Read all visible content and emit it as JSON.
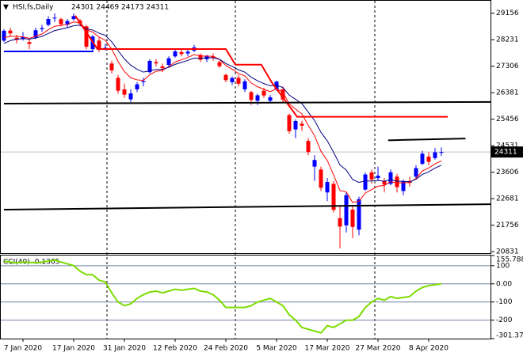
{
  "chart_data": [
    {
      "type": "candlestick",
      "title": "HSI,fs,Daily",
      "subtitle": "24301 24469 24173 24311",
      "categories": [
        null,
        null,
        null,
        "7 Jan 2020",
        null,
        null,
        null,
        null,
        null,
        null,
        null,
        "17 Jan 2020",
        null,
        null,
        null,
        null,
        null,
        null,
        null,
        "31 Jan 2020",
        null,
        null,
        null,
        null,
        null,
        null,
        null,
        "12 Feb 2020",
        null,
        null,
        null,
        null,
        null,
        null,
        null,
        "24 Feb 2020",
        null,
        null,
        null,
        null,
        null,
        null,
        null,
        "5 Mar 2020",
        null,
        null,
        null,
        null,
        null,
        null,
        null,
        "17 Mar 2020",
        null,
        null,
        null,
        null,
        null,
        null,
        null,
        "27 Mar 2020",
        null,
        null,
        null,
        null,
        null,
        null,
        null,
        "8 Apr 2020",
        null,
        null
      ],
      "open": [
        28200,
        28550,
        28300,
        28250,
        28150,
        28300,
        28600,
        28750,
        29000,
        28950,
        28750,
        28950,
        28900,
        28700,
        27900,
        28200,
        27950,
        27400,
        26900,
        26500,
        26150,
        26500,
        26750,
        27100,
        27450,
        27300,
        27350,
        27650,
        27800,
        27750,
        27850,
        27700,
        27550,
        27650,
        27450,
        27000,
        26750,
        26900,
        26500,
        26400,
        26100,
        26450,
        26100,
        26500,
        26500,
        25600,
        25100,
        25300,
        24700,
        23800,
        23700,
        22900,
        23200,
        22000,
        21750,
        22300,
        21600,
        23000,
        23600,
        23400,
        23300,
        23200,
        23450,
        22950,
        23300,
        23450,
        23900,
        24150,
        24100,
        24301
      ],
      "high": [
        28600,
        28650,
        28400,
        28500,
        28250,
        28650,
        28750,
        29050,
        29150,
        29000,
        28950,
        29150,
        28950,
        28750,
        28400,
        28300,
        28100,
        27500,
        27000,
        26700,
        26500,
        26750,
        26900,
        27550,
        27550,
        27400,
        27650,
        27900,
        27900,
        27900,
        28050,
        27750,
        27700,
        27750,
        27500,
        27050,
        26950,
        27000,
        26850,
        26450,
        26350,
        26550,
        26300,
        26800,
        26600,
        25650,
        25450,
        25400,
        24800,
        24200,
        23800,
        23400,
        23300,
        22400,
        22900,
        22450,
        22750,
        23600,
        23700,
        23800,
        23400,
        23700,
        23550,
        23350,
        23450,
        23850,
        24350,
        24300,
        24450,
        24469
      ],
      "low": [
        28150,
        28350,
        28100,
        28200,
        27900,
        28250,
        28500,
        28700,
        28850,
        28700,
        28650,
        28900,
        28700,
        27900,
        27850,
        27800,
        27850,
        27050,
        26350,
        26200,
        26050,
        26400,
        26600,
        27050,
        27300,
        27100,
        27300,
        27600,
        27650,
        27650,
        27800,
        27450,
        27450,
        27500,
        27250,
        26750,
        26650,
        26600,
        26400,
        25950,
        25950,
        26200,
        26000,
        26450,
        26050,
        24950,
        24800,
        25050,
        24200,
        23300,
        22950,
        22600,
        22200,
        20950,
        21500,
        21300,
        21400,
        22950,
        23200,
        23300,
        22900,
        23150,
        22900,
        22800,
        23100,
        23400,
        23850,
        23850,
        24050,
        24173
      ],
      "close": [
        28543,
        28452,
        28226,
        28322,
        28087,
        28561,
        28638,
        28955,
        29000,
        28773,
        28883,
        29056,
        28795,
        27985,
        28341,
        27909,
        27950,
        27160,
        26449,
        26313,
        26356,
        26675,
        26786,
        27493,
        27404,
        27241,
        27583,
        27823,
        27730,
        27816,
        27960,
        27530,
        27656,
        27609,
        27308,
        26820,
        26893,
        26696,
        26778,
        26130,
        26291,
        26284,
        26222,
        26767,
        26146,
        25040,
        25392,
        25231,
        24309,
        24032,
        23064,
        23263,
        22291,
        21709,
        22805,
        21696,
        22663,
        23527,
        23352,
        23484,
        23175,
        23603,
        23085,
        23280,
        23236,
        23749,
        24253,
        23970,
        24300,
        24311
      ],
      "up_color": "#0000ff",
      "down_color": "#ff0000",
      "series": [
        {
          "color": "#ff0000",
          "values": [
            28300,
            28350,
            28350,
            28330,
            28280,
            28350,
            28430,
            28580,
            28700,
            28730,
            28770,
            28850,
            28830,
            28580,
            28500,
            28320,
            28210,
            27900,
            27470,
            27120,
            26900,
            26830,
            26810,
            27010,
            27130,
            27160,
            27290,
            27450,
            27530,
            27610,
            27710,
            27660,
            27660,
            27650,
            27550,
            27330,
            27200,
            27050,
            26970,
            26720,
            26590,
            26500,
            26420,
            26520,
            26400,
            25990,
            25810,
            25640,
            25240,
            24880,
            24340,
            24020,
            23510,
            22970,
            22920,
            22550,
            22590,
            22880,
            23000,
            23120,
            23140,
            23280,
            23220,
            23240,
            23240,
            23390,
            23650,
            23750,
            23900,
            24000
          ]
        },
        {
          "color": "#000080",
          "values": [
            28100,
            28200,
            28250,
            28270,
            28250,
            28290,
            28350,
            28450,
            28550,
            28600,
            28650,
            28720,
            28740,
            28610,
            28570,
            28460,
            28380,
            28160,
            27850,
            27560,
            27340,
            27200,
            27100,
            27150,
            27190,
            27200,
            27270,
            27370,
            27440,
            27510,
            27590,
            27580,
            27600,
            27600,
            27550,
            27400,
            27300,
            27180,
            27100,
            26920,
            26800,
            26700,
            26620,
            26640,
            26560,
            26300,
            26150,
            26000,
            25700,
            25410,
            25000,
            24700,
            24300,
            23860,
            23680,
            23350,
            23250,
            23300,
            23300,
            23320,
            23290,
            23350,
            23290,
            23290,
            23270,
            23360,
            23530,
            23620,
            23750,
            23850
          ]
        }
      ],
      "overlays": [
        {
          "color": "#ff0000",
          "x": [
            11.25,
            14.75,
            35,
            36.5,
            40.6,
            42.25,
            46.25,
            70
          ],
          "values": [
            29070,
            27905,
            27905,
            27360,
            27360,
            26740,
            25540,
            25540
          ]
        },
        {
          "color": "#000000",
          "x": [
            0,
            77
          ],
          "values": [
            26000,
            26060
          ]
        },
        {
          "color": "#000000",
          "x": [
            0,
            77
          ],
          "values": [
            22300,
            22490
          ]
        },
        {
          "color": "#000000",
          "x": [
            60.6,
            72.8
          ],
          "values": [
            24720,
            24780
          ]
        },
        {
          "color": "#0000ff",
          "x": [
            0,
            14.1
          ],
          "values": [
            27823,
            27823
          ]
        }
      ],
      "ylim": [
        20780,
        29590
      ],
      "yticks": [
        29156,
        28231,
        27306,
        26381,
        25456,
        24531,
        23606,
        22681,
        21756,
        20831
      ],
      "last_price": 24311
    },
    {
      "type": "line",
      "title": "CCI(40) -0.1365",
      "color": "#7cdc00",
      "values": [
        125,
        120,
        115,
        120,
        118,
        115,
        120,
        125,
        130,
        120,
        110,
        100,
        70,
        50,
        50,
        20,
        10,
        -50,
        -100,
        -120,
        -110,
        -80,
        -60,
        -45,
        -40,
        -50,
        -40,
        -30,
        -35,
        -30,
        -25,
        -40,
        -45,
        -60,
        -90,
        -130,
        -130,
        -130,
        -130,
        -120,
        -100,
        -90,
        -80,
        -100,
        -120,
        -170,
        -200,
        -240,
        -250,
        -260,
        -270,
        -230,
        -240,
        -220,
        -200,
        -200,
        -180,
        -130,
        -100,
        -80,
        -90,
        -70,
        -80,
        -75,
        -70,
        -40,
        -20,
        -10,
        -5,
        -0.1365
      ],
      "ylim": [
        -301.377,
        155.7882
      ],
      "yticks": [
        155.7882,
        100,
        {
          "value": 0,
          "label": "0.00"
        },
        -100,
        -200,
        -301.377
      ]
    }
  ]
}
